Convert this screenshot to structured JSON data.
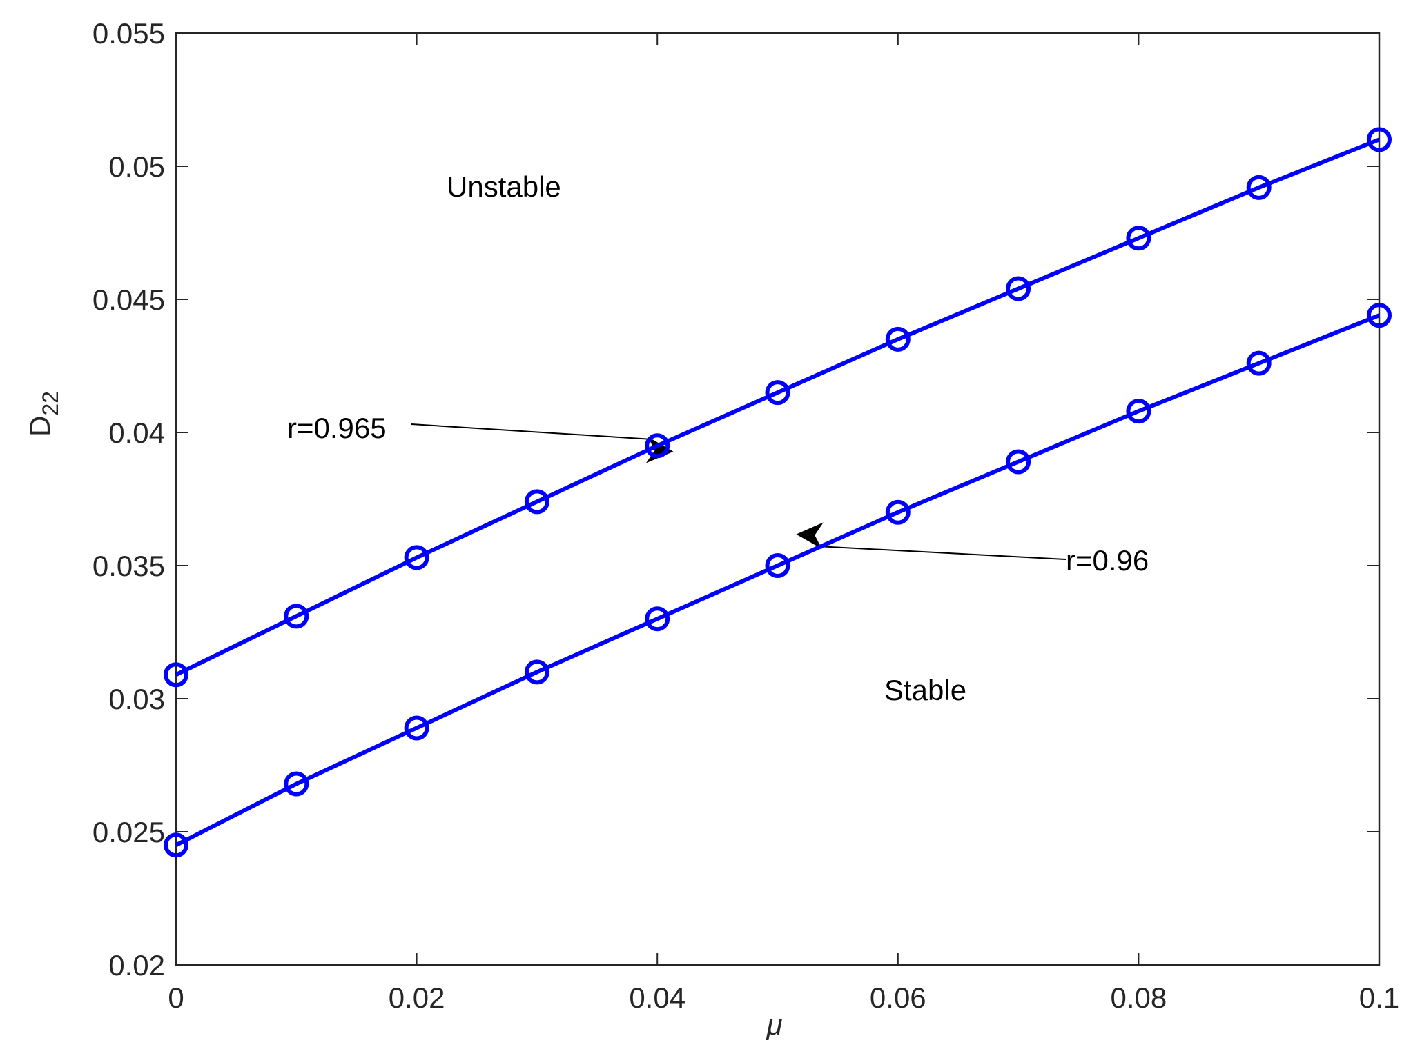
{
  "chart_data": {
    "type": "line",
    "x": [
      0,
      0.01,
      0.02,
      0.03,
      0.04,
      0.05,
      0.06,
      0.07,
      0.08,
      0.09,
      0.1
    ],
    "series": [
      {
        "color": "#0000ff",
        "values": [
          0.0309,
          0.0331,
          0.0353,
          0.0374,
          0.0395,
          0.0415,
          0.0435,
          0.0454,
          0.0473,
          0.0492,
          0.051
        ]
      },
      {
        "color": "#0000ff",
        "values": [
          0.0245,
          0.0268,
          0.0289,
          0.031,
          0.033,
          0.035,
          0.037,
          0.0389,
          0.0408,
          0.0426,
          0.0444
        ]
      }
    ],
    "xlabel": "μ",
    "ylabel": "D",
    "ylabel_subscript": "22",
    "xlim": [
      0,
      0.1
    ],
    "xticks": [
      0,
      0.02,
      0.04,
      0.06,
      0.08,
      0.1
    ],
    "ylim": [
      0.02,
      0.055
    ],
    "yticks": [
      0.02,
      0.025,
      0.03,
      0.035,
      0.04,
      0.045,
      0.05,
      0.055
    ],
    "annotations": [
      "Unstable",
      "Stable",
      "r=0.965",
      "r=0.96"
    ],
    "markers": "circle"
  }
}
